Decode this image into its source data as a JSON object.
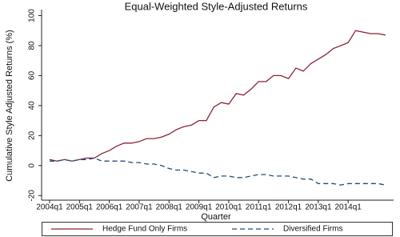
{
  "chart_data": {
    "type": "line",
    "title": "Equal-Weighted Style-Adjusted Returns",
    "x_label": "Quarter",
    "y_label": "Cumulative Style Adjusted Returns (%)",
    "categories": [
      "2004q1",
      null,
      null,
      null,
      "2005q1",
      null,
      null,
      null,
      "2006q1",
      null,
      null,
      null,
      "2007q1",
      null,
      null,
      null,
      "2008q1",
      null,
      null,
      null,
      "2009q1",
      null,
      null,
      null,
      "2010q1",
      null,
      null,
      null,
      "2011q1",
      null,
      null,
      null,
      "2012q1",
      null,
      null,
      null,
      "2013q1",
      null,
      null,
      null,
      "2014q1",
      null,
      null,
      null,
      null,
      null
    ],
    "series": [
      {
        "name": "Hedge Fund Only Firms",
        "color": "#8b2332",
        "dash": false,
        "values": [
          4,
          3,
          4,
          3,
          4,
          5,
          5,
          8,
          10,
          13,
          15,
          15,
          16,
          18,
          18,
          19,
          21,
          24,
          26,
          27,
          30,
          30,
          39,
          42,
          41,
          48,
          47,
          51,
          56,
          56,
          60,
          60,
          58,
          65,
          63,
          68,
          71,
          74,
          78,
          80,
          82,
          90,
          89,
          88,
          88,
          87
        ]
      },
      {
        "name": "Diversified Firms",
        "color": "#1f4e79",
        "dash": true,
        "values": [
          3,
          3,
          4,
          3,
          4,
          4,
          5,
          3,
          3,
          3,
          3,
          2,
          2,
          1,
          1,
          0,
          -2,
          -3,
          -3,
          -4,
          -5,
          -5,
          -8,
          -7,
          -7,
          -8,
          -8,
          -7,
          -6,
          -6,
          -7,
          -7,
          -7,
          -8,
          -9,
          -9,
          -12,
          -12,
          -12,
          -13,
          -12,
          -12,
          -12,
          -12,
          -12,
          -13
        ]
      }
    ],
    "ylim": [
      -22,
      104
    ],
    "yticks": [
      -20,
      0,
      20,
      40,
      60,
      80,
      100
    ]
  }
}
